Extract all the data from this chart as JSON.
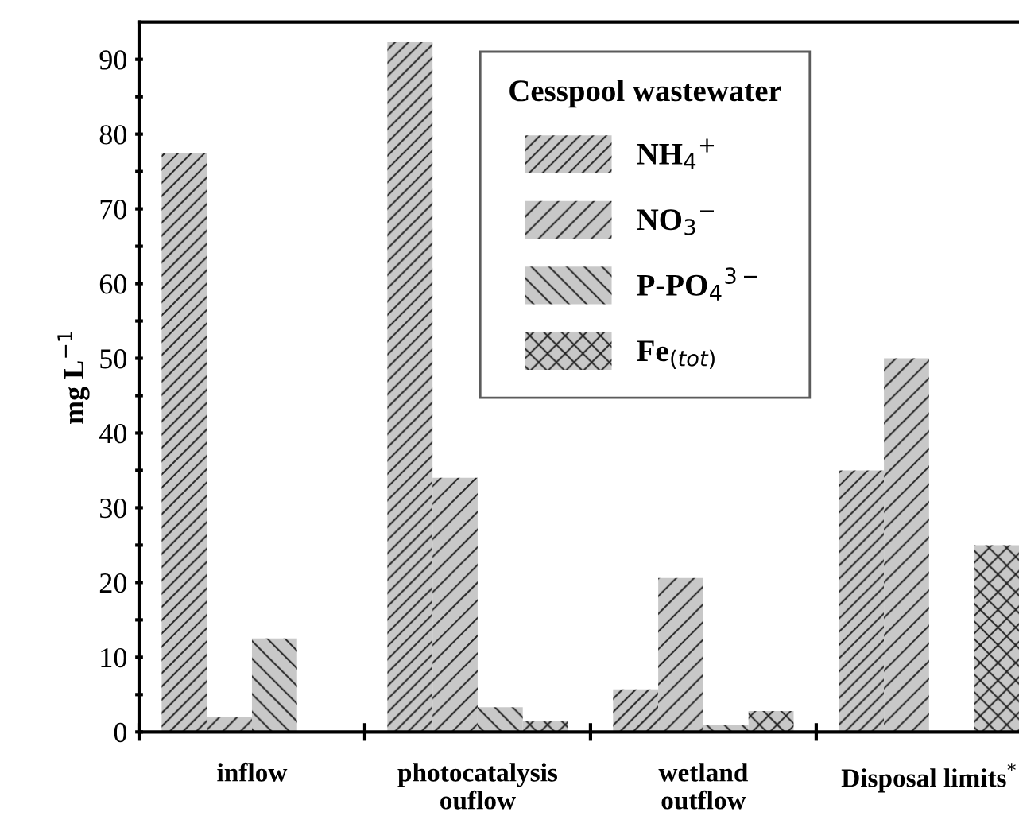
{
  "chart_data": {
    "type": "bar",
    "categories": [
      "inflow",
      "photocatalysis\nouflow",
      "wetland\noutflow",
      "Disposal limits$^{*}$"
    ],
    "ylabel": "mg L$^{−1}$",
    "legend_title": "Cesspool wastewater",
    "series": [
      {
        "name": "NH$_{4}$$^{+}$",
        "color": "#c8c8c8",
        "values": [
          77.5,
          92.3,
          5.7,
          35
        ]
      },
      {
        "name": "NO$_{3}$$^{−}$",
        "color": "#c8c8c8",
        "values": [
          2,
          34,
          20.6,
          50
        ]
      },
      {
        "name": "P-PO$_{4}$$^{3−}$",
        "color": "#c8c8c8",
        "values": [
          12.5,
          3.3,
          1,
          null
        ]
      },
      {
        "name": "Fe$_{(tot)}$",
        "color": "#c8c8c8",
        "values": [
          null,
          1.5,
          2.8,
          25
        ]
      }
    ],
    "ylim": [
      0,
      95
    ],
    "yticks": [
      0,
      {
        "value": 5,
        "label": null
      },
      10,
      {
        "value": 15,
        "label": null
      },
      20,
      {
        "value": 25,
        "label": null
      },
      30,
      {
        "value": 35,
        "label": null
      },
      40,
      {
        "value": 45,
        "label": null
      },
      50,
      {
        "value": 55,
        "label": null
      },
      60,
      {
        "value": 65,
        "label": null
      },
      70,
      {
        "value": 75,
        "label": null
      },
      80,
      {
        "value": 85,
        "label": null
      },
      90
    ],
    "grid": false,
    "legend": "top right"
  }
}
